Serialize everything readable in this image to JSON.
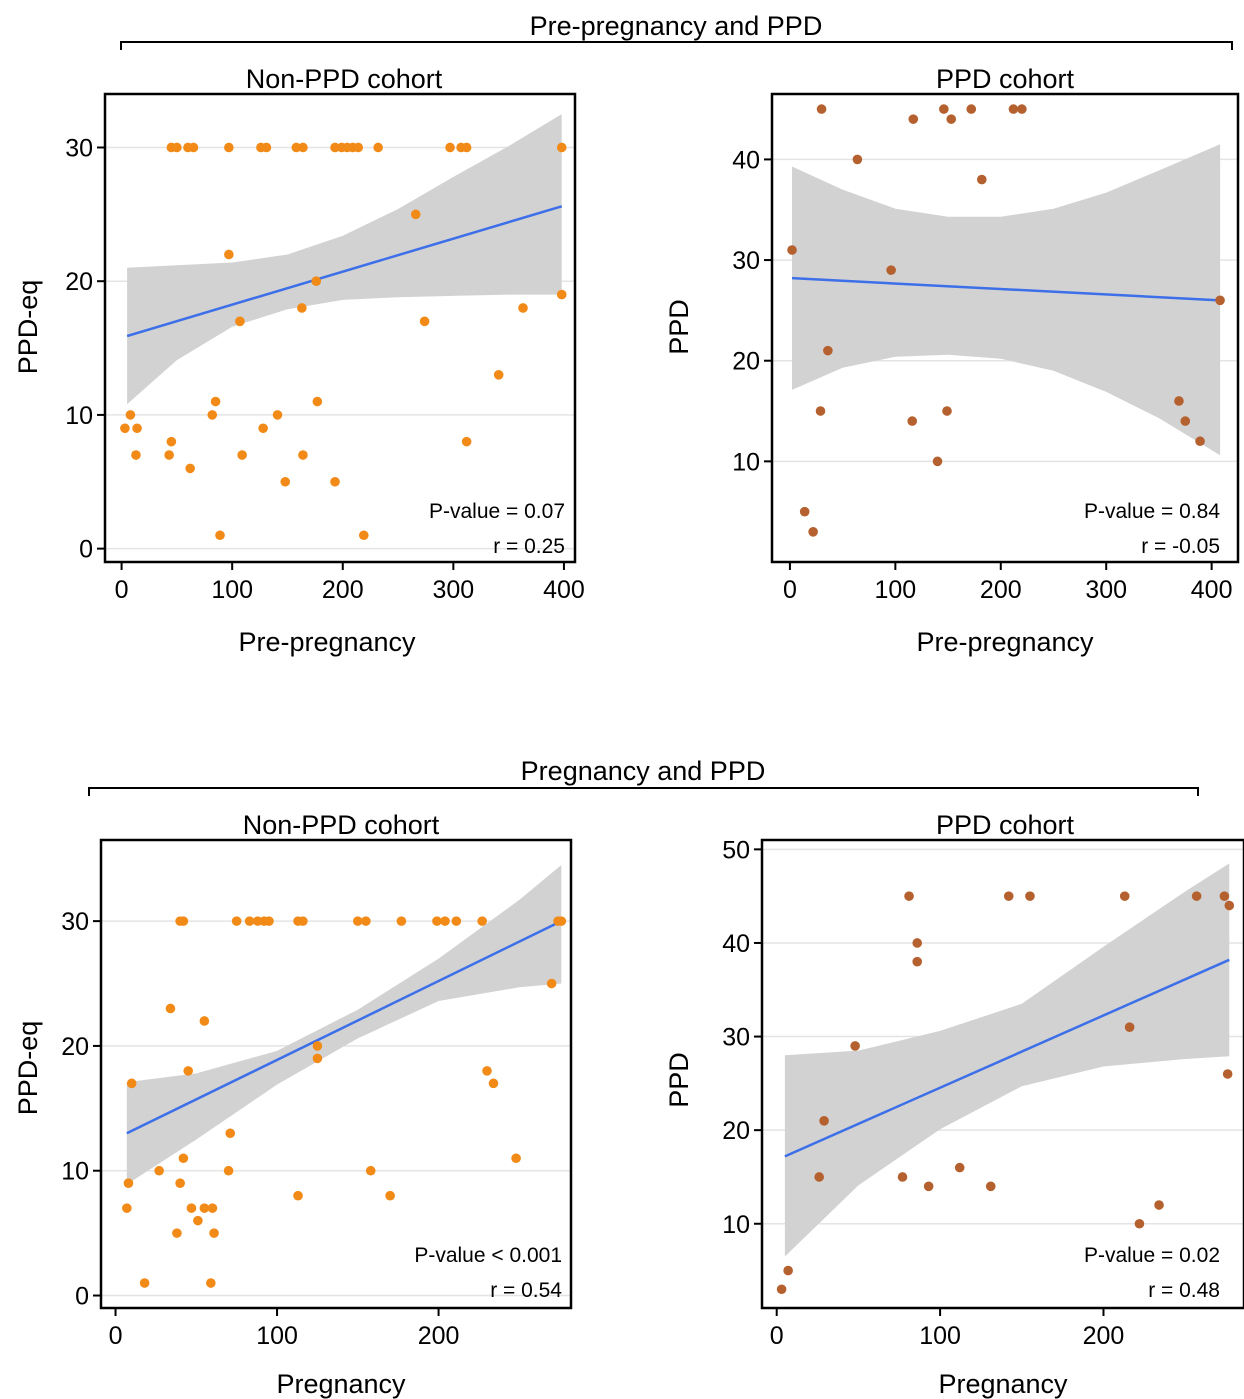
{
  "groups": [
    {
      "title": "Pre-pregnancy and PPD"
    },
    {
      "title": "Pregnancy and PPD"
    }
  ],
  "colors": {
    "non_ppd_point": "#f28a17",
    "ppd_point": "#b5602f",
    "fit_line": "#3d6fe8",
    "ci_band": "#d2d2d2",
    "grid": "#e4e4e4"
  },
  "chart_data": [
    {
      "type": "scatter",
      "title": "Non-PPD cohort",
      "group": "Pre-pregnancy and PPD",
      "xlabel": "Pre-pregnancy",
      "ylabel": "PPD-eq",
      "xlim": [
        -15,
        410
      ],
      "ylim": [
        -1,
        34
      ],
      "xticks": [
        0,
        100,
        200,
        300,
        400
      ],
      "yticks": [
        0,
        10,
        20,
        30
      ],
      "grid": "horizontal",
      "p_value_text": "P-value = 0.07",
      "r_text": "r = 0.25",
      "points": [
        [
          45,
          30
        ],
        [
          50,
          30
        ],
        [
          60,
          30
        ],
        [
          65,
          30
        ],
        [
          97,
          30
        ],
        [
          126,
          30
        ],
        [
          131,
          30
        ],
        [
          158,
          30
        ],
        [
          164,
          30
        ],
        [
          193,
          30
        ],
        [
          199,
          30
        ],
        [
          204,
          30
        ],
        [
          209,
          30
        ],
        [
          214,
          30
        ],
        [
          232,
          30
        ],
        [
          297,
          30
        ],
        [
          307,
          30
        ],
        [
          312,
          30
        ],
        [
          398,
          30
        ],
        [
          266,
          25
        ],
        [
          97,
          22
        ],
        [
          176,
          20
        ],
        [
          398,
          19
        ],
        [
          163,
          18
        ],
        [
          363,
          18
        ],
        [
          107,
          17
        ],
        [
          274,
          17
        ],
        [
          341,
          13
        ],
        [
          85,
          11
        ],
        [
          177,
          11
        ],
        [
          8,
          10
        ],
        [
          82,
          10
        ],
        [
          141,
          10
        ],
        [
          3,
          9
        ],
        [
          14,
          9
        ],
        [
          128,
          9
        ],
        [
          45,
          8
        ],
        [
          312,
          8
        ],
        [
          13,
          7
        ],
        [
          43,
          7
        ],
        [
          109,
          7
        ],
        [
          164,
          7
        ],
        [
          62,
          6
        ],
        [
          148,
          5
        ],
        [
          193,
          5
        ],
        [
          89,
          1
        ],
        [
          219,
          1
        ]
      ],
      "fit": {
        "x": [
          5,
          398
        ],
        "y": [
          15.9,
          25.6
        ]
      },
      "band": {
        "x": [
          5,
          50,
          100,
          150,
          200,
          250,
          300,
          350,
          398
        ],
        "lower": [
          10.8,
          14.1,
          16.6,
          17.9,
          18.6,
          18.8,
          18.9,
          19.0,
          19.0
        ],
        "upper": [
          21.0,
          21.2,
          21.4,
          22.0,
          23.4,
          25.4,
          27.8,
          30.1,
          32.5
        ]
      }
    },
    {
      "type": "scatter",
      "title": "PPD cohort",
      "group": "Pre-pregnancy and PPD",
      "xlabel": "Pre-pregnancy",
      "ylabel": "PPD",
      "xlim": [
        -17,
        425
      ],
      "ylim": [
        0,
        46.5
      ],
      "xticks": [
        0,
        100,
        200,
        300,
        400
      ],
      "yticks": [
        10,
        20,
        30,
        40
      ],
      "grid": "horizontal",
      "p_value_text": "P-value = 0.84",
      "r_text": "r = -0.05",
      "points": [
        [
          30,
          45
        ],
        [
          146,
          45
        ],
        [
          172,
          45
        ],
        [
          212,
          45
        ],
        [
          220,
          45
        ],
        [
          117,
          44
        ],
        [
          153,
          44
        ],
        [
          64,
          40
        ],
        [
          182,
          38
        ],
        [
          2,
          31
        ],
        [
          96,
          29
        ],
        [
          408,
          26
        ],
        [
          36,
          21
        ],
        [
          369,
          16
        ],
        [
          29,
          15
        ],
        [
          149,
          15
        ],
        [
          116,
          14
        ],
        [
          375,
          14
        ],
        [
          389,
          12
        ],
        [
          140,
          10
        ],
        [
          14,
          5
        ],
        [
          22,
          3
        ]
      ],
      "fit": {
        "x": [
          2,
          408
        ],
        "y": [
          28.2,
          26.0
        ]
      },
      "band": {
        "x": [
          2,
          50,
          100,
          150,
          200,
          250,
          300,
          350,
          408
        ],
        "lower": [
          17.1,
          19.3,
          20.4,
          20.6,
          20.2,
          19.0,
          16.9,
          14.3,
          10.6
        ],
        "upper": [
          39.3,
          37.0,
          35.1,
          34.3,
          34.3,
          35.1,
          36.7,
          38.9,
          41.5
        ]
      }
    },
    {
      "type": "scatter",
      "title": "Non-PPD cohort",
      "group": "Pregnancy and PPD",
      "xlabel": "Pregnancy",
      "ylabel": "PPD-eq",
      "xlim": [
        -9,
        282
      ],
      "ylim": [
        -1,
        36.5
      ],
      "xticks": [
        0,
        100,
        200
      ],
      "yticks": [
        0,
        10,
        20,
        30
      ],
      "grid": "horizontal",
      "p_value_text": "P-value < 0.001",
      "r_text": "r = 0.54",
      "points": [
        [
          40,
          30
        ],
        [
          42,
          30
        ],
        [
          75,
          30
        ],
        [
          83,
          30
        ],
        [
          88,
          30
        ],
        [
          92,
          30
        ],
        [
          95,
          30
        ],
        [
          113,
          30
        ],
        [
          116,
          30
        ],
        [
          150,
          30
        ],
        [
          155,
          30
        ],
        [
          177,
          30
        ],
        [
          199,
          30
        ],
        [
          204,
          30
        ],
        [
          211,
          30
        ],
        [
          227,
          30
        ],
        [
          274,
          30
        ],
        [
          276,
          30
        ],
        [
          270,
          25
        ],
        [
          34,
          23
        ],
        [
          55,
          22
        ],
        [
          125,
          20
        ],
        [
          125,
          19
        ],
        [
          45,
          18
        ],
        [
          230,
          18
        ],
        [
          10,
          17
        ],
        [
          234,
          17
        ],
        [
          71,
          13
        ],
        [
          42,
          11
        ],
        [
          248,
          11
        ],
        [
          27,
          10
        ],
        [
          70,
          10
        ],
        [
          158,
          10
        ],
        [
          8,
          9
        ],
        [
          40,
          9
        ],
        [
          113,
          8
        ],
        [
          170,
          8
        ],
        [
          7,
          7
        ],
        [
          47,
          7
        ],
        [
          55,
          7
        ],
        [
          60,
          7
        ],
        [
          51,
          6
        ],
        [
          38,
          5
        ],
        [
          61,
          5
        ],
        [
          18,
          1
        ],
        [
          59,
          1
        ]
      ],
      "fit": {
        "x": [
          7,
          276
        ],
        "y": [
          13.0,
          30.0
        ]
      },
      "band": {
        "x": [
          7,
          50,
          100,
          150,
          200,
          250,
          276
        ],
        "lower": [
          8.9,
          12.5,
          16.9,
          20.6,
          23.6,
          24.7,
          25.0
        ],
        "upper": [
          17.1,
          17.8,
          19.6,
          22.9,
          27.0,
          31.7,
          34.5
        ]
      }
    },
    {
      "type": "scatter",
      "title": "PPD cohort",
      "group": "Pregnancy and PPD",
      "xlabel": "Pregnancy",
      "ylabel": "PPD",
      "xlim": [
        -9,
        286
      ],
      "ylim": [
        1,
        51
      ],
      "xticks": [
        0,
        100,
        200
      ],
      "yticks": [
        10,
        20,
        30,
        40,
        50
      ],
      "grid": "horizontal",
      "p_value_text": "P-value = 0.02",
      "r_text": "r = 0.48",
      "points": [
        [
          81,
          45
        ],
        [
          142,
          45
        ],
        [
          155,
          45
        ],
        [
          213,
          45
        ],
        [
          257,
          45
        ],
        [
          274,
          45
        ],
        [
          277,
          44
        ],
        [
          86,
          40
        ],
        [
          86,
          38
        ],
        [
          216,
          31
        ],
        [
          48,
          29
        ],
        [
          29,
          21
        ],
        [
          112,
          16
        ],
        [
          26,
          15
        ],
        [
          77,
          15
        ],
        [
          93,
          14
        ],
        [
          131,
          14
        ],
        [
          234,
          12
        ],
        [
          222,
          10
        ],
        [
          7,
          5
        ],
        [
          3,
          3
        ],
        [
          276,
          26
        ]
      ],
      "fit": {
        "x": [
          5,
          277
        ],
        "y": [
          17.2,
          38.2
        ]
      },
      "band": {
        "x": [
          5,
          50,
          100,
          150,
          200,
          250,
          277
        ],
        "lower": [
          6.5,
          14.1,
          20.1,
          24.7,
          26.8,
          27.6,
          27.9
        ],
        "upper": [
          28.0,
          28.5,
          30.6,
          33.5,
          39.6,
          45.5,
          48.5
        ]
      }
    }
  ]
}
